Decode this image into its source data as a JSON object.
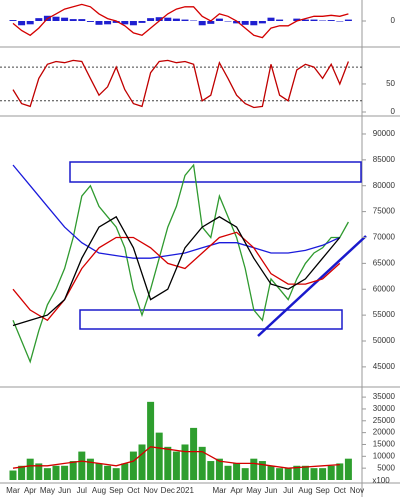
{
  "chart_data": [
    {
      "type": "macd",
      "ylim": [
        -4000,
        4000
      ],
      "yticks": [
        0
      ],
      "x": [
        0,
        0.5,
        1,
        1.5,
        2,
        2.5,
        3,
        3.5,
        4,
        4.5,
        5,
        5.5,
        6,
        6.5,
        7,
        7.5,
        8,
        8.5,
        9,
        9.5,
        10,
        10.5,
        11,
        11.5,
        12,
        12.5,
        13,
        13.5,
        14,
        14.5,
        15,
        15.5,
        16,
        16.5,
        17,
        17.5,
        18,
        18.5,
        19,
        19.5
      ],
      "series": [
        {
          "kind": "bars",
          "color": "#1f1fd0",
          "values": [
            200,
            -900,
            -700,
            600,
            1100,
            900,
            700,
            400,
            400,
            -200,
            -800,
            -700,
            -400,
            -700,
            -900,
            -400,
            600,
            800,
            700,
            500,
            300,
            100,
            -900,
            -600,
            500,
            -100,
            -500,
            -800,
            -900,
            -500,
            700,
            300,
            0,
            500,
            300,
            300,
            100,
            200,
            -100,
            300
          ]
        },
        {
          "kind": "line",
          "color": "#d40000",
          "values": [
            -500,
            -2000,
            -3000,
            -1500,
            500,
            1500,
            2500,
            3000,
            3500,
            3000,
            1500,
            500,
            0,
            -1000,
            -2500,
            -3000,
            -1500,
            0,
            1500,
            2500,
            3000,
            3000,
            1000,
            0,
            1500,
            1000,
            0,
            -1500,
            -3000,
            -3500,
            -1500,
            -1000,
            -1000,
            0,
            500,
            1000,
            1000,
            1200,
            1000,
            1500
          ]
        }
      ]
    },
    {
      "type": "stochastic",
      "ylim": [
        0,
        107
      ],
      "yticks": [
        0,
        50
      ],
      "levels": [
        20,
        80
      ],
      "x": [
        0,
        0.5,
        1,
        1.5,
        2,
        2.5,
        3,
        3.5,
        4,
        4.5,
        5,
        5.5,
        6,
        6.5,
        7,
        7.5,
        8,
        8.5,
        9,
        9.5,
        10,
        10.5,
        11,
        11.5,
        12,
        12.5,
        13,
        13.5,
        14,
        14.5,
        15,
        15.5,
        16,
        16.5,
        17,
        17.5,
        18,
        18.5,
        19,
        19.5
      ],
      "series": [
        {
          "kind": "line",
          "color": "#c00000",
          "values": [
            40,
            15,
            10,
            60,
            85,
            90,
            88,
            92,
            90,
            60,
            30,
            45,
            80,
            40,
            15,
            10,
            70,
            90,
            92,
            88,
            90,
            85,
            20,
            30,
            88,
            60,
            30,
            15,
            8,
            10,
            85,
            30,
            20,
            75,
            85,
            80,
            60,
            85,
            50,
            90
          ]
        }
      ]
    },
    {
      "type": "price",
      "ylim": [
        41500,
        92700
      ],
      "yticks": [
        45000,
        50000,
        55000,
        60000,
        65000,
        70000,
        75000,
        80000,
        85000,
        90000
      ],
      "x": [
        0,
        0.5,
        1,
        1.5,
        2,
        2.5,
        3,
        3.5,
        4,
        4.5,
        5,
        5.5,
        6,
        6.5,
        7,
        7.5,
        8,
        8.5,
        9,
        9.5,
        10,
        10.5,
        11,
        11.5,
        12,
        12.5,
        13,
        13.5,
        14,
        14.5,
        15,
        15.5,
        16,
        16.5,
        17,
        17.5,
        18,
        18.5,
        19,
        19.5
      ],
      "series": [
        {
          "kind": "line",
          "color": "#2f9a2f",
          "values": [
            54000,
            50000,
            46000,
            52000,
            57000,
            60000,
            64000,
            70000,
            78000,
            80000,
            76000,
            74000,
            72000,
            68000,
            60000,
            55000,
            60000,
            66000,
            72000,
            76000,
            82000,
            84000,
            72000,
            70000,
            78000,
            74000,
            70000,
            64000,
            56000,
            54000,
            62000,
            60000,
            58000,
            62000,
            65000,
            67000,
            68000,
            70000,
            70000,
            73000
          ]
        },
        {
          "kind": "line",
          "color": "#1a1adb",
          "x": [
            0,
            1,
            2,
            3,
            4,
            5,
            6,
            7,
            8,
            9,
            10,
            11,
            12,
            13,
            14,
            15,
            16,
            17,
            18,
            19
          ],
          "values": [
            84000,
            80000,
            76000,
            72000,
            69000,
            67000,
            66500,
            66000,
            66000,
            66500,
            67000,
            68000,
            69000,
            69000,
            68000,
            67000,
            67000,
            67500,
            68500,
            70000
          ]
        },
        {
          "kind": "line",
          "color": "#d40000",
          "x": [
            0,
            1,
            2,
            3,
            4,
            5,
            6,
            7,
            8,
            9,
            10,
            11,
            12,
            13,
            14,
            15,
            16,
            17,
            18,
            19
          ],
          "values": [
            60000,
            56000,
            54000,
            58000,
            64000,
            68000,
            70000,
            70000,
            68000,
            65000,
            64000,
            67000,
            70000,
            71000,
            68000,
            63000,
            61000,
            61000,
            62000,
            65000
          ]
        },
        {
          "kind": "line",
          "color": "#000000",
          "x": [
            0,
            1,
            2,
            3,
            4,
            5,
            6,
            7,
            8,
            9,
            10,
            11,
            12,
            13,
            14,
            15,
            16,
            17,
            18,
            19
          ],
          "values": [
            53000,
            54000,
            55000,
            58000,
            66000,
            72000,
            74000,
            68000,
            58000,
            60000,
            68000,
            72000,
            74000,
            72000,
            66000,
            61000,
            60000,
            62000,
            66000,
            70000
          ]
        }
      ]
    },
    {
      "type": "volume",
      "ylim": [
        0,
        38000
      ],
      "yticks": [
        5000,
        10000,
        15000,
        20000,
        25000,
        30000,
        35000
      ],
      "unit": "x100",
      "categories": [
        "Mar",
        "Apr",
        "May",
        "Jun",
        "Jul",
        "Aug",
        "Sep",
        "Oct",
        "Nov",
        "Dec",
        "2021",
        null,
        "Mar",
        "Apr",
        "May",
        "Jun",
        "Jul",
        "Aug",
        "Sep",
        "Oct",
        "Nov"
      ],
      "x": [
        0,
        0.5,
        1,
        1.5,
        2,
        2.5,
        3,
        3.5,
        4,
        4.5,
        5,
        5.5,
        6,
        6.5,
        7,
        7.5,
        8,
        8.5,
        9,
        9.5,
        10,
        10.5,
        11,
        11.5,
        12,
        12.5,
        13,
        13.5,
        14,
        14.5,
        15,
        15.5,
        16,
        16.5,
        17,
        17.5,
        18,
        18.5,
        19,
        19.5
      ],
      "series": [
        {
          "kind": "bars",
          "color": "#2e9e2e",
          "values": [
            4000,
            6000,
            9000,
            7000,
            5000,
            6000,
            6000,
            8000,
            12000,
            9000,
            7000,
            6000,
            5000,
            7000,
            12000,
            15000,
            33000,
            20000,
            14000,
            12000,
            15000,
            22000,
            14000,
            8000,
            9000,
            6000,
            7000,
            5000,
            9000,
            8000,
            6000,
            5000,
            5000,
            6000,
            6000,
            5000,
            5000,
            6000,
            7000,
            9000
          ]
        },
        {
          "kind": "line",
          "color": "#d40000",
          "x": [
            0,
            1,
            2,
            3,
            4,
            5,
            6,
            7,
            8,
            9,
            10,
            11,
            12,
            13,
            14,
            15,
            16,
            17,
            18,
            19
          ],
          "values": [
            5000,
            6000,
            6000,
            7000,
            8000,
            7000,
            6000,
            8000,
            14000,
            13000,
            12000,
            12000,
            8000,
            7000,
            7000,
            6000,
            5000,
            5500,
            6000,
            6500
          ]
        }
      ]
    }
  ]
}
